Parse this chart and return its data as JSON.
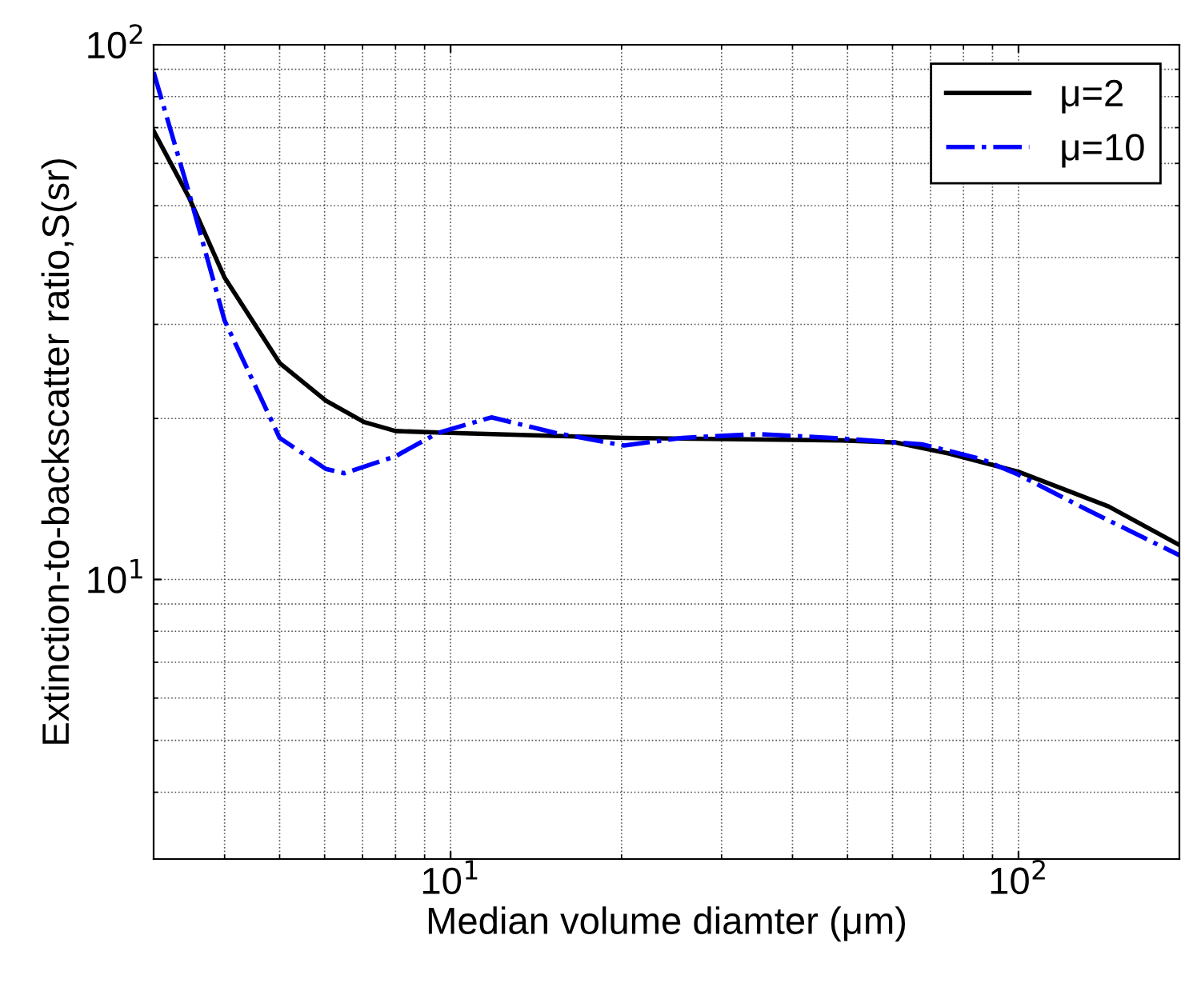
{
  "chart_data": {
    "type": "line",
    "xlabel": "Median volume diamter (μm)",
    "ylabel": "Extinction-to-backscatter ratio,S(sr)",
    "log": "xy",
    "xlim": [
      3,
      192
    ],
    "ylim": [
      3,
      100
    ],
    "xticks": [
      {
        "value": 10,
        "label": "10$^{1}$"
      },
      {
        "value": 100,
        "label": "10$^{2}$"
      }
    ],
    "yticks": [
      {
        "value": 10,
        "label": "10$^{1}$"
      },
      {
        "value": 100,
        "label": "10$^{2}$"
      }
    ],
    "grid": true,
    "legend": "top right",
    "series": [
      {
        "name": "μ=2",
        "color": "#000000",
        "line_style": "solid",
        "x": [
          3.0,
          3.46,
          4.0,
          5.0,
          6.03,
          7.04,
          8.0,
          10,
          20.2,
          49,
          60.8,
          75.4,
          100,
          144,
          192
        ],
        "values": [
          69,
          51.9,
          36.7,
          25.4,
          21.6,
          19.7,
          18.95,
          18.8,
          18.4,
          18.2,
          18.04,
          17.2,
          15.9,
          13.7,
          11.6
        ]
      },
      {
        "name": "μ=10",
        "color": "#0000ff",
        "line_style": "dashdot",
        "x": [
          3.0,
          3.46,
          4.0,
          5.0,
          6.03,
          6.5,
          8,
          9.5,
          11.8,
          15.3,
          20.2,
          25.6,
          34.7,
          46.9,
          67.6,
          86,
          100,
          132,
          192
        ],
        "values": [
          88.9,
          53,
          30.5,
          18.4,
          16.1,
          15.8,
          17.0,
          18.8,
          20.1,
          18.8,
          17.8,
          18.4,
          18.7,
          18.4,
          17.9,
          16.8,
          15.7,
          13.5,
          11.1
        ]
      }
    ]
  }
}
